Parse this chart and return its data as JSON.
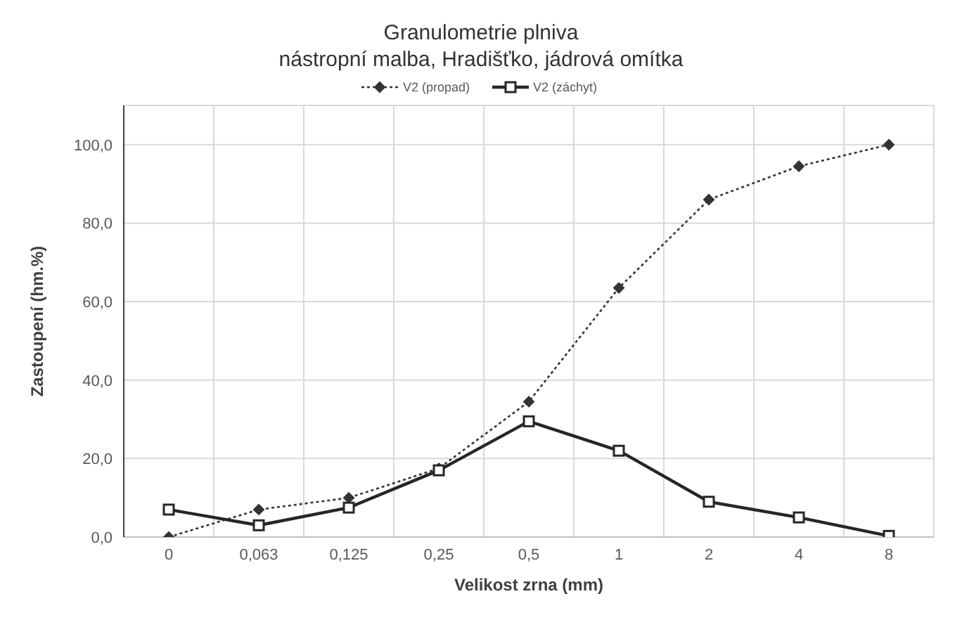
{
  "chart_data": {
    "type": "line",
    "title": "Granulometrie plniva",
    "subtitle": "nástropní malba, Hradišťko, jádrová omítka",
    "xlabel": "Velikost zrna (mm)",
    "ylabel": "Zastoupení (hm.%)",
    "categories": [
      "0",
      "0,063",
      "0,125",
      "0,25",
      "0,5",
      "1",
      "2",
      "4",
      "8"
    ],
    "series": [
      {
        "name": "V2 (propad)",
        "color": "#333333",
        "marker": "diamond",
        "line_style": "dotted",
        "values": [
          0,
          7,
          10,
          17.5,
          34.5,
          63.5,
          86,
          94.5,
          100
        ]
      },
      {
        "name": "V2 (záchyt)",
        "color": "#262626",
        "marker": "square",
        "line_style": "solid",
        "values": [
          7,
          3,
          7.5,
          17,
          29.5,
          22,
          9,
          5,
          0.3
        ]
      }
    ],
    "ylim": [
      0,
      110
    ],
    "yticks": [
      {
        "value": 0,
        "label": "0,0"
      },
      {
        "value": 20,
        "label": "20,0"
      },
      {
        "value": 40,
        "label": "40,0"
      },
      {
        "value": 60,
        "label": "60,0"
      },
      {
        "value": 80,
        "label": "80,0"
      },
      {
        "value": 100,
        "label": "100,0"
      }
    ],
    "grid": true,
    "legend": "top"
  }
}
